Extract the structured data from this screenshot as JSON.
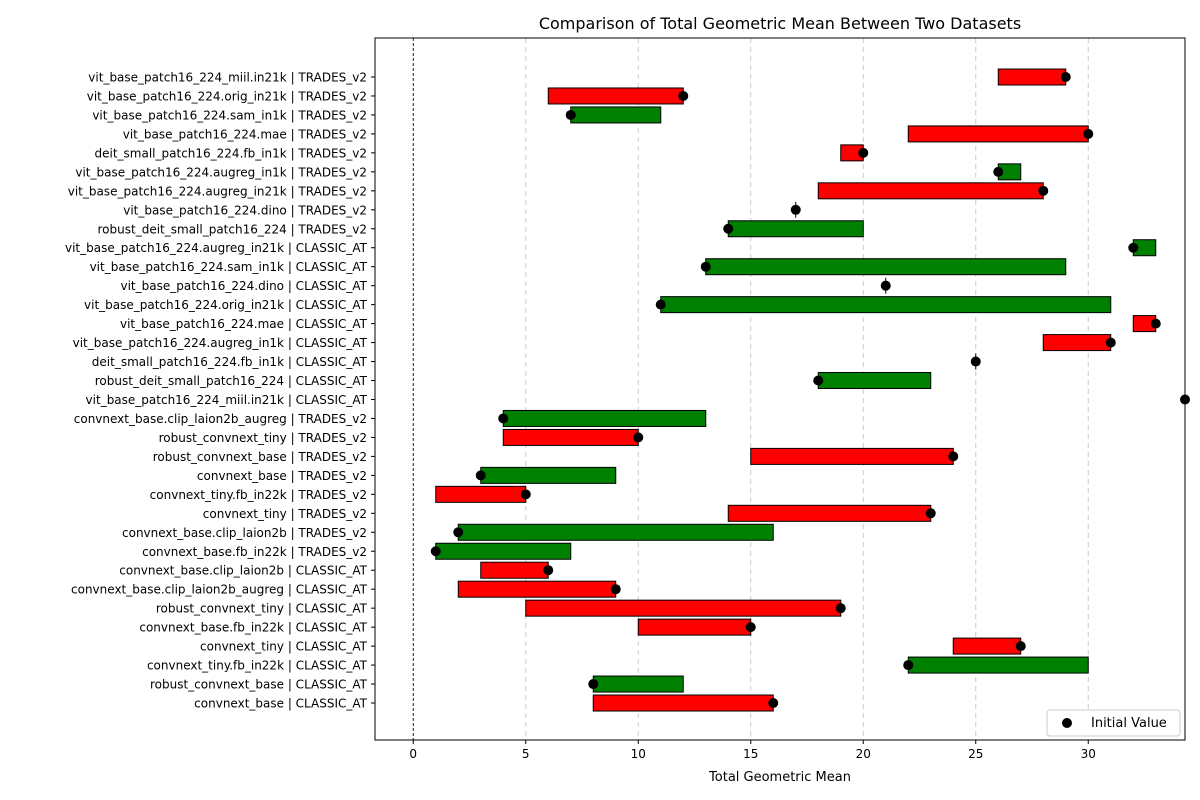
{
  "chart_data": {
    "type": "bar",
    "title": "Comparison of Total Geometric Mean Between Two Datasets",
    "xlabel": "Total Geometric Mean",
    "ylabel": "",
    "xlim": [
      -1.7,
      34.3
    ],
    "xticks": [
      0,
      5,
      10,
      15,
      20,
      25,
      30
    ],
    "grid": "x-dashed",
    "legend": {
      "placement": "bottom-right",
      "entries": [
        "Initial Value"
      ]
    },
    "colors": {
      "increase": "#008000",
      "decrease": "#ff0000",
      "marker": "#000000",
      "edge": "#000000"
    },
    "categories": [
      "vit_base_patch16_224_miil.in21k | TRADES_v2",
      "vit_base_patch16_224.orig_in21k | TRADES_v2",
      "vit_base_patch16_224.sam_in1k | TRADES_v2",
      "vit_base_patch16_224.mae | TRADES_v2",
      "deit_small_patch16_224.fb_in1k | TRADES_v2",
      "vit_base_patch16_224.augreg_in1k | TRADES_v2",
      "vit_base_patch16_224.augreg_in21k | TRADES_v2",
      "vit_base_patch16_224.dino | TRADES_v2",
      "robust_deit_small_patch16_224 | TRADES_v2",
      "vit_base_patch16_224.augreg_in21k | CLASSIC_AT",
      "vit_base_patch16_224.sam_in1k | CLASSIC_AT",
      "vit_base_patch16_224.dino | CLASSIC_AT",
      "vit_base_patch16_224.orig_in21k | CLASSIC_AT",
      "vit_base_patch16_224.mae | CLASSIC_AT",
      "vit_base_patch16_224.augreg_in1k | CLASSIC_AT",
      "deit_small_patch16_224.fb_in1k | CLASSIC_AT",
      "robust_deit_small_patch16_224 | CLASSIC_AT",
      "vit_base_patch16_224_miil.in21k | CLASSIC_AT",
      "convnext_base.clip_laion2b_augreg | TRADES_v2",
      "robust_convnext_tiny | TRADES_v2",
      "robust_convnext_base | TRADES_v2",
      "convnext_base | TRADES_v2",
      "convnext_tiny.fb_in22k | TRADES_v2",
      "convnext_tiny | TRADES_v2",
      "convnext_base.clip_laion2b | TRADES_v2",
      "convnext_base.fb_in22k | TRADES_v2",
      "convnext_base.clip_laion2b | CLASSIC_AT",
      "convnext_base.clip_laion2b_augreg | CLASSIC_AT",
      "robust_convnext_tiny | CLASSIC_AT",
      "convnext_base.fb_in22k | CLASSIC_AT",
      "convnext_tiny | CLASSIC_AT",
      "convnext_tiny.fb_in22k | CLASSIC_AT",
      "robust_convnext_base | CLASSIC_AT",
      "convnext_base | CLASSIC_AT"
    ],
    "initial": [
      29,
      12,
      7,
      30,
      20,
      26,
      28,
      17,
      14,
      32,
      13,
      21,
      11,
      33,
      31,
      25,
      18,
      34.3,
      4,
      10,
      24,
      3,
      5,
      23,
      2,
      1,
      6,
      9,
      19,
      15,
      27,
      22,
      8,
      16
    ],
    "final": [
      26,
      6,
      11,
      22,
      19,
      27,
      18,
      17,
      20,
      33,
      29,
      21,
      31,
      32,
      28,
      25,
      23,
      34.3,
      13,
      4,
      15,
      9,
      1,
      14,
      16,
      7,
      3,
      2,
      5,
      10,
      24,
      30,
      12,
      8
    ]
  }
}
